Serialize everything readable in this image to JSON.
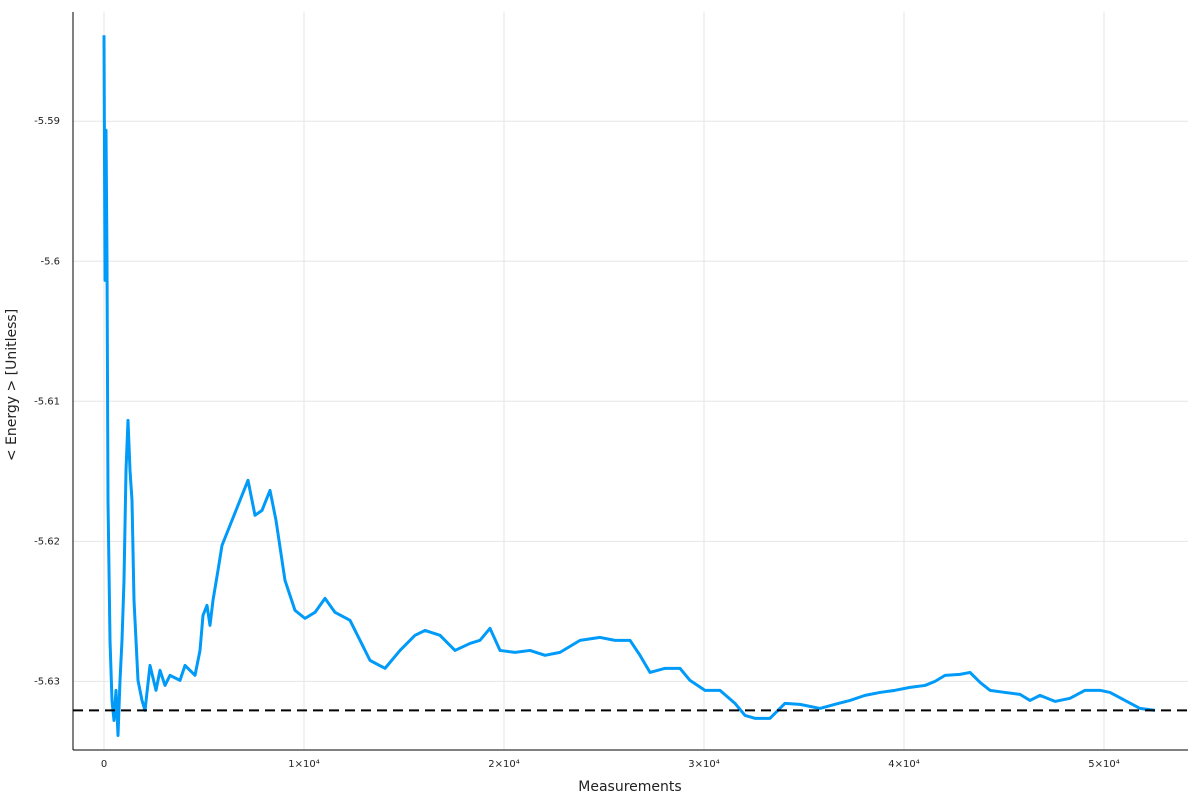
{
  "chart_data": {
    "type": "line",
    "x_label": "Measurements",
    "y_label": "< Energy > [Unitless]",
    "xlim": [
      -1550,
      54200
    ],
    "ylim": [
      -5.6349,
      -5.5822
    ],
    "xticks": [
      0,
      {
        "value": 10000,
        "label": "1×10⁴"
      },
      {
        "value": 20000,
        "label": "2×10⁴"
      },
      {
        "value": 30000,
        "label": "3×10⁴"
      },
      {
        "value": 40000,
        "label": "4×10⁴"
      },
      {
        "value": 50000,
        "label": "5×10⁴"
      }
    ],
    "yticks": [
      -5.63,
      -5.62,
      -5.61,
      -5.6,
      -5.59
    ],
    "grid": true,
    "reference_line": -5.63207,
    "reference_color": "#000000",
    "series": [
      {
        "color": "#009af9",
        "x": [
          0,
          50,
          100,
          150,
          200,
          300,
          400,
          500,
          600,
          700,
          800,
          900,
          1000,
          1100,
          1200,
          1300,
          1400,
          1500,
          1700,
          1900,
          2050,
          2300,
          2600,
          2800,
          3050,
          3300,
          3800,
          4050,
          4550,
          4800,
          4950,
          5150,
          5300,
          5450,
          5700,
          5900,
          6300,
          6800,
          7200,
          7550,
          7900,
          8300,
          8600,
          9050,
          9550,
          10050,
          10550,
          11050,
          11550,
          12300,
          12800,
          13300,
          14050,
          14800,
          15550,
          16050,
          16800,
          17550,
          18300,
          18800,
          19300,
          19800,
          20550,
          21300,
          22050,
          22800,
          23800,
          24800,
          25550,
          26300,
          26800,
          27300,
          28050,
          28800,
          29300,
          30050,
          30800,
          31550,
          32050,
          32550,
          33300,
          34050,
          34800,
          35800,
          36550,
          37300,
          38050,
          38800,
          39550,
          40300,
          41050,
          41550,
          42050,
          42800,
          43300,
          43800,
          44300,
          45050,
          45800,
          46300,
          46800,
          47550,
          48300,
          49050,
          49800,
          50300,
          51050,
          51800,
          52550
        ],
        "values": [
          -5.58386,
          -5.60136,
          -5.59064,
          -5.59993,
          -5.61707,
          -5.62707,
          -5.63136,
          -5.63279,
          -5.63064,
          -5.63386,
          -5.62993,
          -5.62707,
          -5.62279,
          -5.61493,
          -5.61136,
          -5.61493,
          -5.61707,
          -5.62421,
          -5.62993,
          -5.63136,
          -5.63207,
          -5.62886,
          -5.63064,
          -5.62921,
          -5.63029,
          -5.62957,
          -5.62993,
          -5.62886,
          -5.62957,
          -5.62779,
          -5.62529,
          -5.62457,
          -5.626,
          -5.62421,
          -5.62207,
          -5.62029,
          -5.61886,
          -5.61707,
          -5.61564,
          -5.61814,
          -5.61779,
          -5.61636,
          -5.6185,
          -5.62279,
          -5.62493,
          -5.6255,
          -5.62507,
          -5.62407,
          -5.62507,
          -5.62564,
          -5.62707,
          -5.6285,
          -5.62907,
          -5.62779,
          -5.62671,
          -5.62636,
          -5.62671,
          -5.62779,
          -5.62729,
          -5.62707,
          -5.62621,
          -5.62779,
          -5.62793,
          -5.62779,
          -5.62814,
          -5.62793,
          -5.62707,
          -5.62686,
          -5.62707,
          -5.62707,
          -5.62814,
          -5.62936,
          -5.62907,
          -5.62907,
          -5.62993,
          -5.63064,
          -5.63064,
          -5.63157,
          -5.63243,
          -5.63264,
          -5.63264,
          -5.63157,
          -5.63164,
          -5.63193,
          -5.63164,
          -5.63136,
          -5.631,
          -5.63079,
          -5.63064,
          -5.63043,
          -5.63029,
          -5.63,
          -5.62957,
          -5.6295,
          -5.62936,
          -5.63007,
          -5.63064,
          -5.63079,
          -5.63093,
          -5.63136,
          -5.631,
          -5.63143,
          -5.63121,
          -5.63064,
          -5.63064,
          -5.63079,
          -5.63136,
          -5.63193,
          -5.63207
        ]
      }
    ]
  }
}
